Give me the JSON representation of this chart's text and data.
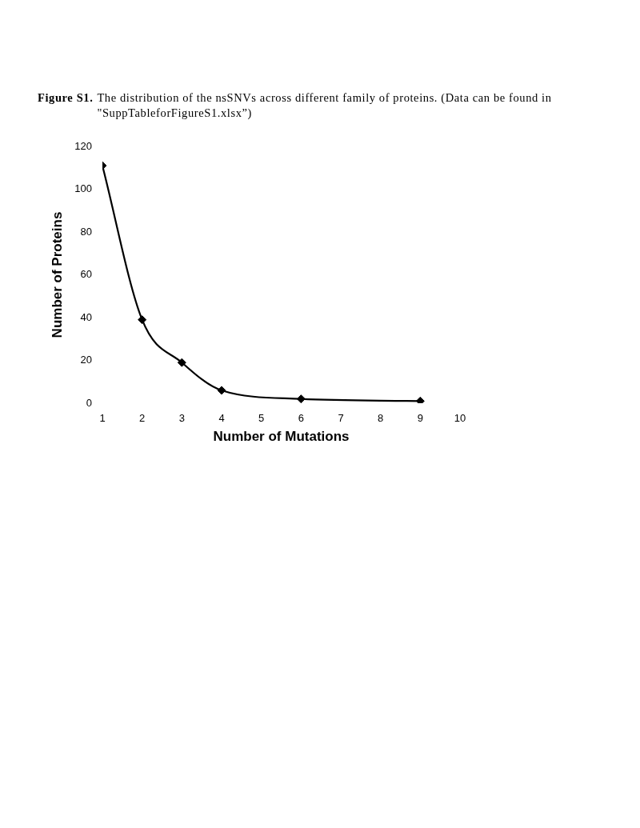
{
  "chart_data": {
    "type": "line",
    "title": "Figure S1.",
    "subtitle": "The distribution of the nsSNVs across different family of proteins. (Data can be found in \"SuppTableforFigureS1.xlsx”)",
    "xlabel": "Number of Mutations",
    "ylabel": "Number of Proteins",
    "x": [
      1,
      2,
      3,
      4,
      6,
      9
    ],
    "series": [
      {
        "color": "#000000",
        "values": [
          111,
          39,
          19,
          6,
          2,
          1
        ]
      }
    ],
    "xlim": [
      1,
      10
    ],
    "xticks": [
      1,
      2,
      3,
      4,
      5,
      6,
      7,
      8,
      9,
      10
    ],
    "ylim": [
      0,
      120
    ],
    "yticks": [
      0,
      20,
      40,
      60,
      80,
      100,
      120
    ],
    "grid": false,
    "legend": false,
    "marker": "diamond",
    "line_style": "solid"
  }
}
